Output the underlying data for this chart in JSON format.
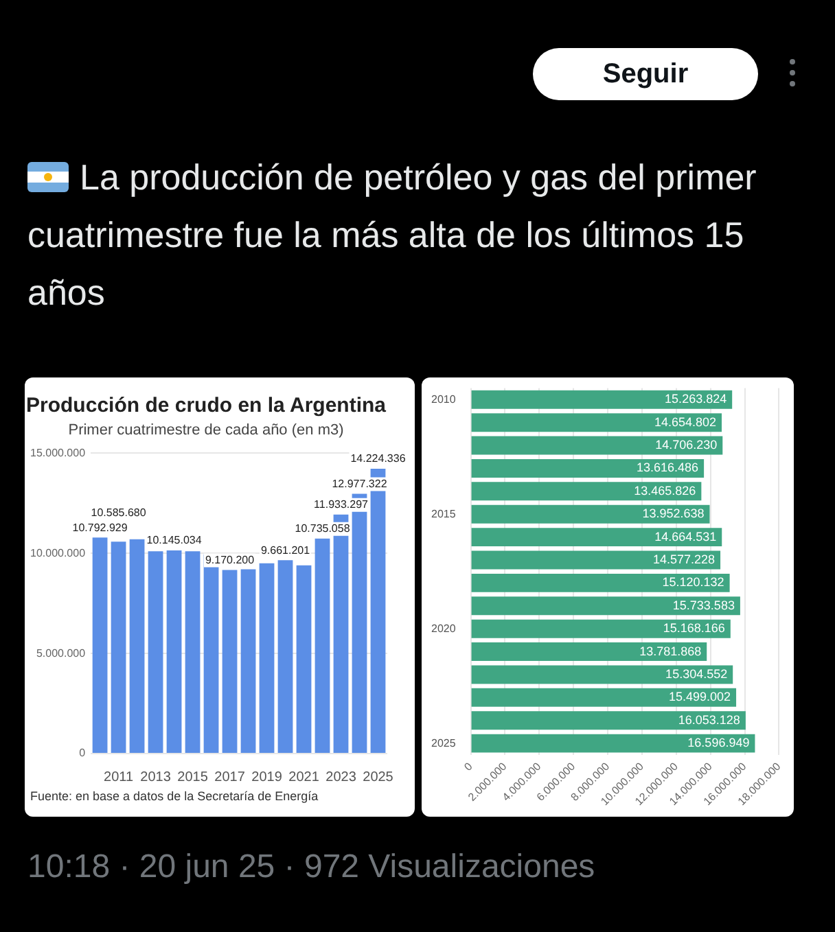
{
  "chart_data": [
    {
      "type": "other",
      "title": "La producción de petróleo y gas del primer cuatrimestre fue la más alta de los últimos 15 años",
      "annotations": [
        "Seguir",
        "10:18 · 20 jun 25 · 972 Visualizaciones"
      ]
    },
    {
      "type": "bar",
      "title": "Producción de crudo en la Argentina",
      "subtitle": "Primer cuatrimestre de cada año (en m3)",
      "categories": [
        null,
        "2011",
        null,
        "2013",
        null,
        "2015",
        null,
        "2017",
        null,
        "2019",
        null,
        "2021",
        null,
        "2023",
        null,
        "2025"
      ],
      "values": [
        10792929,
        10585680,
        10700000,
        10100000,
        10145034,
        10100000,
        9950000,
        9170200,
        9200000,
        9500000,
        9661201,
        9400000,
        10735058,
        11933297,
        12977322,
        14224336
      ],
      "value_labels": [
        "10.792.929",
        "10.585.680",
        null,
        null,
        "10.145.034",
        null,
        null,
        "9.170.200",
        null,
        null,
        "9.661.201",
        null,
        "10.735.058",
        "11.933.297",
        "12.977.322",
        "14.224.336"
      ],
      "color": "#5b8ee6",
      "ylim": [
        0,
        15000000
      ],
      "yticks": [
        {
          "value": 0,
          "label": "0"
        },
        {
          "value": 5000000,
          "label": "5.000.000"
        },
        {
          "value": 10000000,
          "label": "10.000.000"
        },
        {
          "value": 15000000,
          "label": "15.000.000"
        }
      ],
      "grid": "y",
      "annotations": [
        "Fuente: en base a datos de la Secretaría de Energía"
      ]
    },
    {
      "type": "bar",
      "orientation": "horizontal",
      "categories": [
        "2010",
        null,
        null,
        null,
        null,
        "2015",
        null,
        null,
        null,
        null,
        "2020",
        null,
        null,
        null,
        null,
        "2025"
      ],
      "values": [
        15263824,
        14654802,
        14706230,
        13616486,
        13465826,
        13952638,
        14664531,
        14577228,
        15120132,
        15733583,
        15168166,
        13781868,
        15304552,
        15499002,
        16053128,
        16596949
      ],
      "value_labels": [
        "15.263.824",
        "14.654.802",
        "14.706.230",
        "13.616.486",
        "13.465.826",
        "13.952.638",
        "14.664.531",
        "14.577.228",
        "15.120.132",
        "15.733.583",
        "15.168.166",
        "13.781.868",
        "15.304.552",
        "15.499.002",
        "16.053.128",
        "16.596.949"
      ],
      "color": "#40a683",
      "xlim": [
        0,
        18000000
      ],
      "xticks": [
        {
          "value": 0,
          "label": "0"
        },
        {
          "value": 2000000,
          "label": "2.000.000"
        },
        {
          "value": 4000000,
          "label": "4.000.000"
        },
        {
          "value": 6000000,
          "label": "6.000.000"
        },
        {
          "value": 8000000,
          "label": "8.000.000"
        },
        {
          "value": 10000000,
          "label": "10.000.000"
        },
        {
          "value": 12000000,
          "label": "12.000.000"
        },
        {
          "value": 14000000,
          "label": "14.000.000"
        },
        {
          "value": 16000000,
          "label": "16.000.000"
        },
        {
          "value": 18000000,
          "label": "18.000.000"
        }
      ],
      "grid": "x"
    }
  ]
}
